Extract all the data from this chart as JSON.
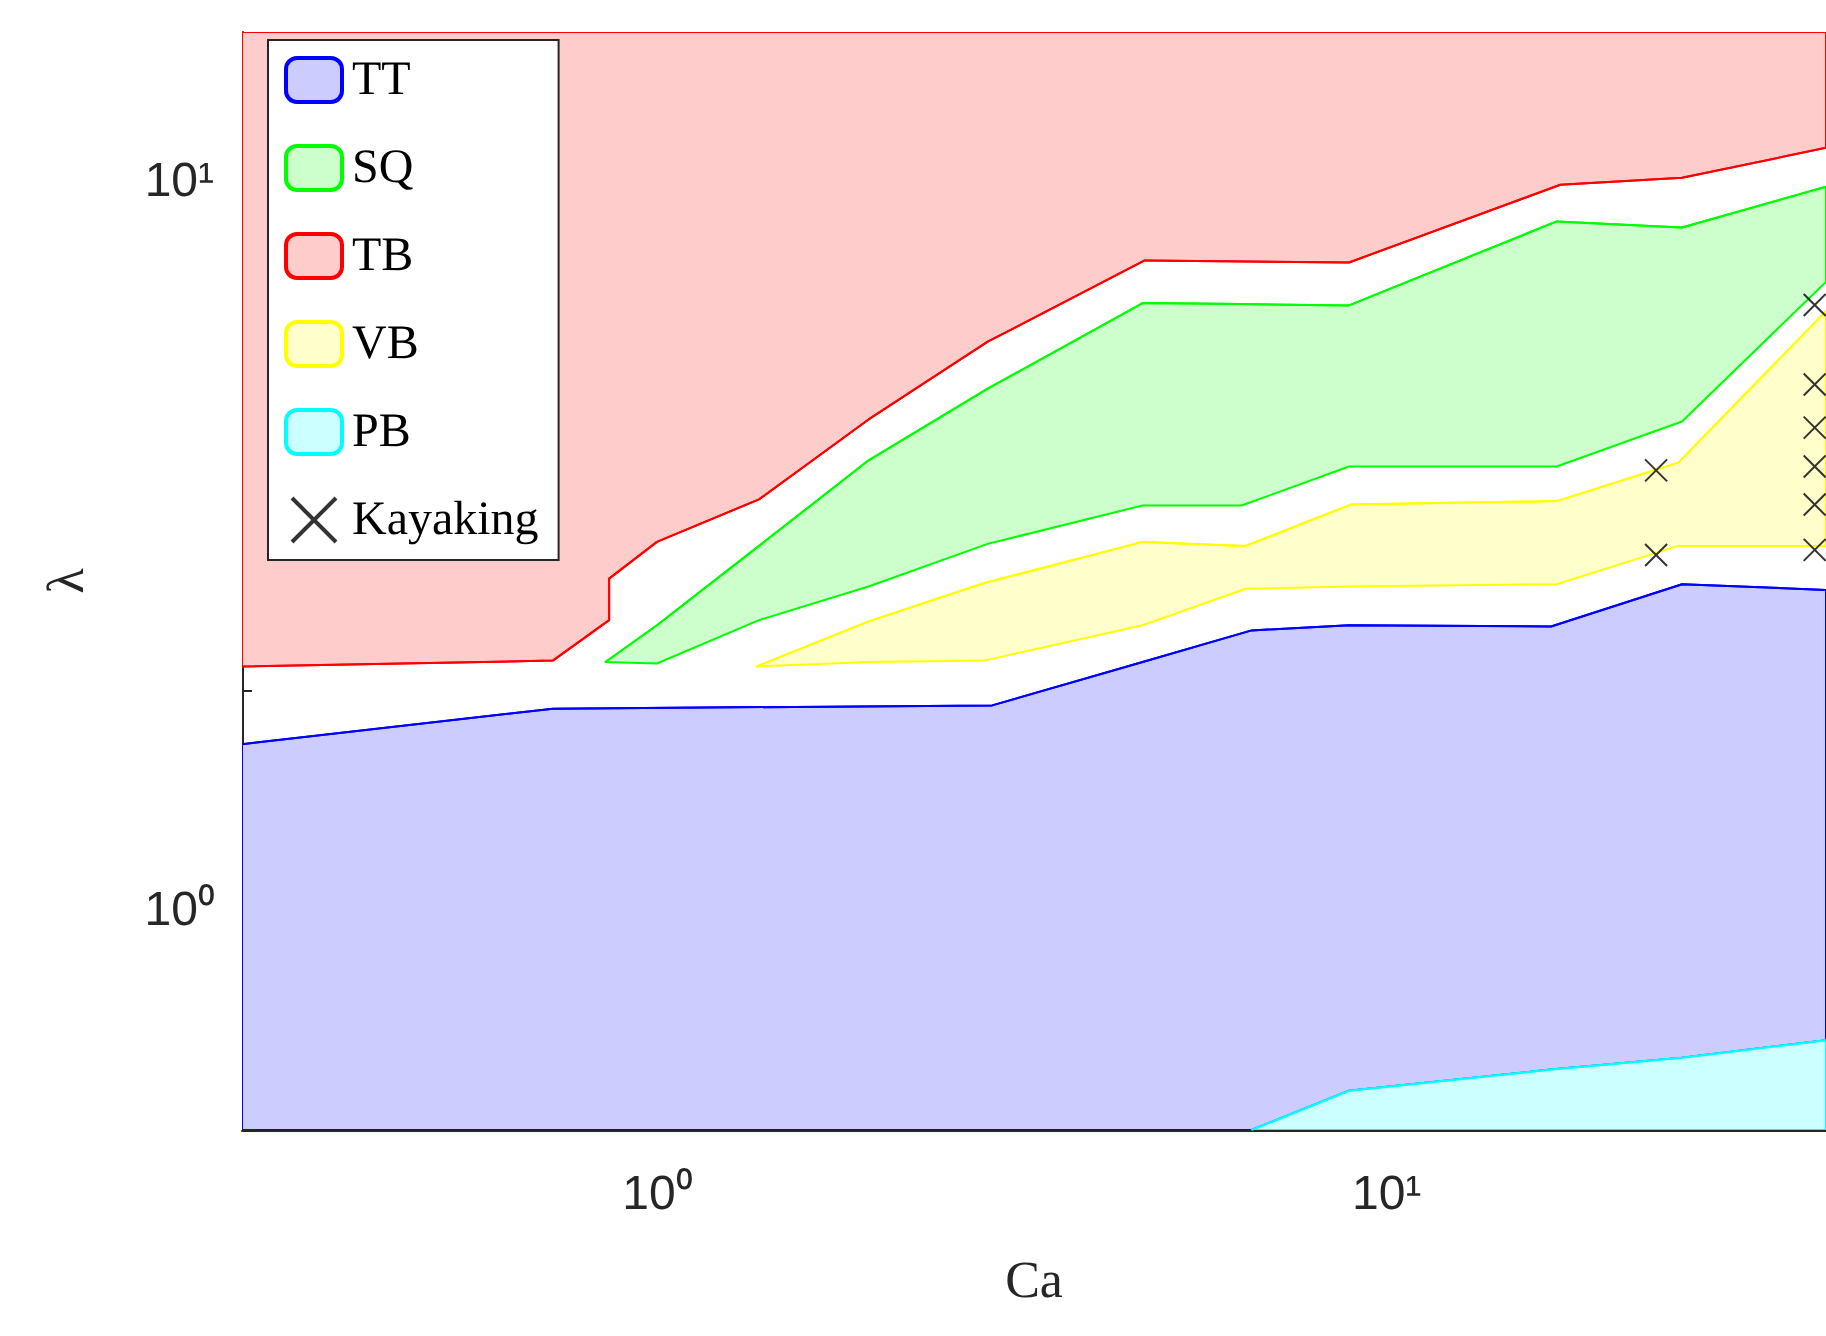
{
  "chart_data": {
    "type": "line",
    "xlabel": "Ca",
    "ylabel": "λ",
    "log": "xy",
    "grid": false,
    "legend": "top left",
    "xlim": [
      0.27,
      40
    ],
    "ylim": [
      0.5,
      16
    ],
    "xticks": [
      {
        "value": 0.3,
        "label": null
      },
      {
        "value": 0.4,
        "label": null
      },
      {
        "value": 0.5,
        "label": null
      },
      {
        "value": 0.6,
        "label": null
      },
      {
        "value": 0.7,
        "label": null
      },
      {
        "value": 0.8,
        "label": null
      },
      {
        "value": 0.9,
        "label": null
      },
      {
        "value": 1,
        "label": "10⁰"
      },
      {
        "value": 2,
        "label": null
      },
      {
        "value": 3,
        "label": null
      },
      {
        "value": 4,
        "label": null
      },
      {
        "value": 5,
        "label": null
      },
      {
        "value": 6,
        "label": null
      },
      {
        "value": 7,
        "label": null
      },
      {
        "value": 8,
        "label": null
      },
      {
        "value": 9,
        "label": null
      },
      {
        "value": 10,
        "label": "10¹"
      },
      {
        "value": 20,
        "label": null
      },
      {
        "value": 30,
        "label": null
      },
      {
        "value": 40,
        "label": null
      }
    ],
    "yticks": [
      {
        "value": 0.5,
        "label": null
      },
      {
        "value": 0.6,
        "label": null
      },
      {
        "value": 0.7,
        "label": null
      },
      {
        "value": 0.8,
        "label": null
      },
      {
        "value": 0.9,
        "label": null
      },
      {
        "value": 1,
        "label": "10⁰"
      },
      {
        "value": 2,
        "label": null
      },
      {
        "value": 3,
        "label": null
      },
      {
        "value": 4,
        "label": null
      },
      {
        "value": 5,
        "label": null
      },
      {
        "value": 6,
        "label": null
      },
      {
        "value": 7,
        "label": null
      },
      {
        "value": 8,
        "label": null
      },
      {
        "value": 9,
        "label": null
      },
      {
        "value": 10,
        "label": "10¹"
      }
    ],
    "series": [
      {
        "name": "TT",
        "color": "#0000ff",
        "x": [
          0.27,
          0.72,
          2.88,
          4.63,
          6.53,
          8.88,
          16.8,
          25.4,
          40
        ],
        "values": [
          1.69,
          1.89,
          1.91,
          2.19,
          2.42,
          2.46,
          2.45,
          2.8,
          2.75
        ],
        "upper": [
          1.69,
          1.89,
          1.91,
          2.19,
          2.42,
          2.46,
          2.45,
          2.8,
          2.75
        ],
        "lower": [
          0.5,
          0.5,
          0.5,
          0.5,
          0.5,
          0.566,
          0.605,
          0.628,
          0.664
        ]
      },
      {
        "name": "SQ",
        "color": "#00ff00",
        "x": [
          0.85,
          1.0,
          1.38,
          1.95,
          2.84,
          4.63,
          6.33,
          8.88,
          17.1,
          25.4,
          40
        ],
        "values": [
          2.19,
          2.46,
          3.16,
          4.14,
          5.19,
          6.8,
          6.78,
          6.75,
          8.8,
          8.63,
          9.82
        ],
        "upper": [
          2.19,
          2.46,
          3.16,
          4.14,
          5.19,
          6.8,
          6.78,
          6.75,
          8.8,
          8.63,
          9.82
        ],
        "lower": [
          2.19,
          2.18,
          2.5,
          2.78,
          3.18,
          3.59,
          3.59,
          4.06,
          4.06,
          4.68,
          7.27
        ]
      },
      {
        "name": "TB",
        "color": "#ff0000",
        "x": [
          0.27,
          0.72,
          0.86,
          0.86,
          1.0,
          1.38,
          1.95,
          2.84,
          4.66,
          8.88,
          17.3,
          25.4,
          40
        ],
        "values": [
          2.16,
          2.2,
          2.5,
          2.85,
          3.2,
          3.66,
          4.71,
          6.02,
          7.78,
          7.73,
          9.88,
          10.1,
          11.1
        ],
        "upper": [
          16,
          16,
          16,
          16,
          16,
          16,
          16,
          16,
          16,
          16,
          16,
          16,
          16
        ],
        "lower": [
          2.16,
          2.2,
          2.5,
          2.85,
          3.2,
          3.66,
          4.71,
          6.02,
          7.78,
          7.73,
          9.88,
          10.1,
          11.1
        ]
      },
      {
        "name": "VB",
        "color": "#ffff00",
        "x": [
          1.37,
          1.95,
          2.81,
          4.63,
          6.41,
          8.93,
          17.1,
          25.1,
          40
        ],
        "values": [
          2.16,
          2.49,
          2.81,
          3.2,
          3.16,
          3.6,
          3.64,
          4.11,
          6.63
        ],
        "upper": [
          2.16,
          2.49,
          2.81,
          3.2,
          3.16,
          3.6,
          3.64,
          4.11,
          6.63
        ],
        "lower": [
          2.16,
          2.19,
          2.2,
          2.46,
          2.76,
          2.78,
          2.8,
          3.16,
          3.16
        ]
      },
      {
        "name": "PB",
        "color": "#00ffff",
        "x": [
          6.53,
          8.88,
          16.8,
          25.4,
          40
        ],
        "values": [
          0.5,
          0.566,
          0.605,
          0.628,
          0.664
        ],
        "upper": [
          0.5,
          0.566,
          0.605,
          0.628,
          0.664
        ],
        "lower": [
          0.5,
          0.5,
          0.5,
          0.5,
          0.5
        ]
      },
      {
        "name": "Kayaking",
        "color": "#000000",
        "type": "scatter",
        "marker": "cross",
        "x": [
          23.4,
          23.4,
          38.6,
          38.6,
          38.6,
          38.6,
          38.6,
          38.6
        ],
        "values": [
          4.01,
          3.07,
          6.76,
          5.26,
          4.59,
          4.06,
          3.6,
          3.12
        ]
      }
    ]
  }
}
